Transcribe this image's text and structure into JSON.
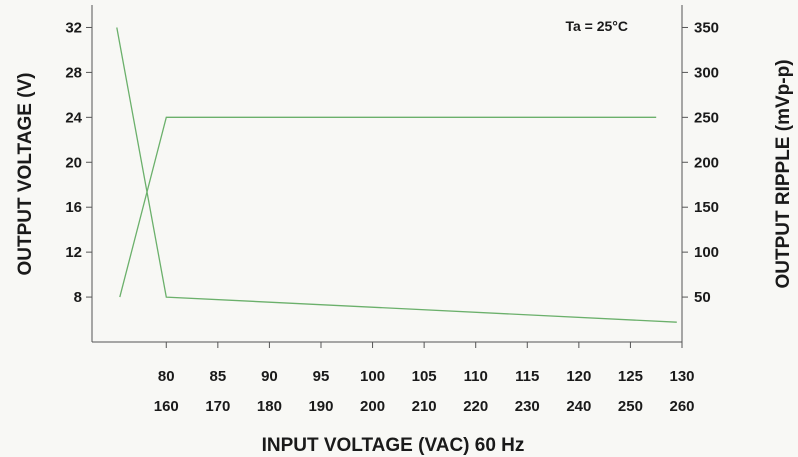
{
  "chart_data": {
    "type": "line",
    "annotation": "Ta = 25°C",
    "xlabel": "INPUT VOLTAGE (VAC) 60 Hz",
    "ylabel_left": "OUTPUT VOLTAGE (V)",
    "ylabel_right": "OUTPUT RIPPLE (mVp-p)",
    "x_axis_primary": {
      "ticks": [
        80,
        85,
        90,
        95,
        100,
        105,
        110,
        115,
        120,
        125,
        130
      ],
      "range": [
        72.8,
        130
      ]
    },
    "x_axis_secondary": {
      "ticks": [
        160,
        170,
        180,
        190,
        200,
        210,
        220,
        230,
        240,
        250,
        260
      ]
    },
    "y_left": {
      "ticks": [
        8,
        12,
        16,
        20,
        24,
        28,
        32
      ],
      "range": [
        4,
        34
      ]
    },
    "y_right": {
      "ticks": [
        50,
        100,
        150,
        200,
        250,
        300,
        350
      ],
      "range": [
        0,
        375
      ]
    },
    "series": [
      {
        "axis": "left",
        "x": [
          75.5,
          80,
          127.5
        ],
        "y": [
          8,
          24,
          24
        ]
      },
      {
        "axis": "right",
        "x": [
          75.2,
          80,
          129.5
        ],
        "y": [
          350,
          50,
          22
        ]
      }
    ],
    "line_color": "#6bb06b",
    "grid": false
  }
}
